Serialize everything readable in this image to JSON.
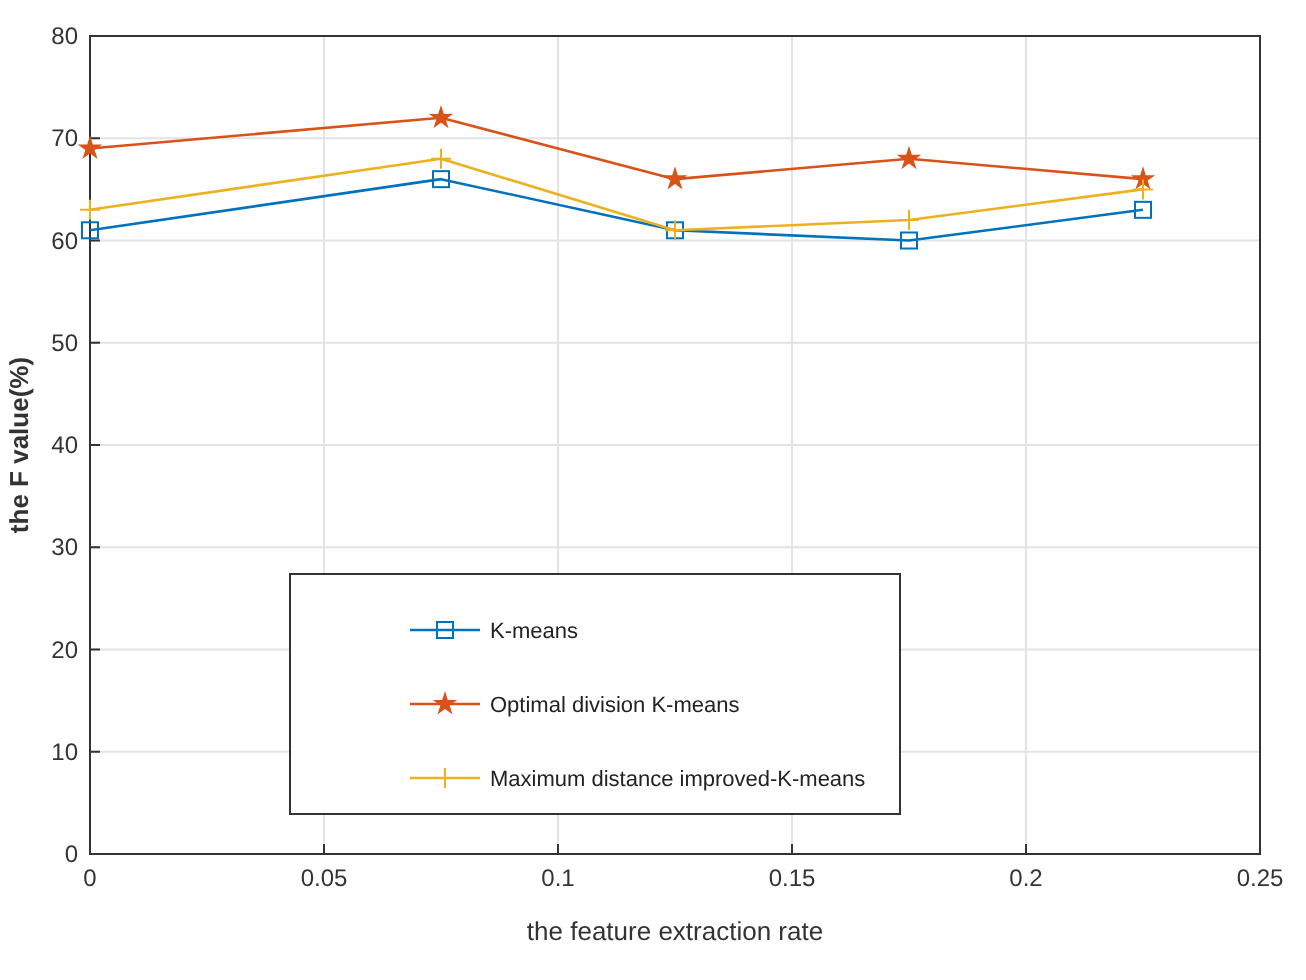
{
  "chart_data": {
    "type": "line",
    "xlabel": "the feature extraction rate",
    "ylabel": "the F value(%)",
    "x": [
      0,
      0.075,
      0.125,
      0.175,
      0.225
    ],
    "series": [
      {
        "name": "K-means",
        "color": "#0072bd",
        "marker": "square",
        "values": [
          61,
          66,
          61,
          60,
          63
        ]
      },
      {
        "name": "Optimal division K-means",
        "color": "#d95319",
        "marker": "star",
        "values": [
          69,
          72,
          66,
          68,
          66
        ]
      },
      {
        "name": "Maximum distance improved-K-means",
        "color": "#edb120",
        "marker": "cross",
        "values": [
          63,
          68,
          61,
          62,
          65
        ]
      }
    ],
    "xlim": [
      0,
      0.25
    ],
    "xticks": [
      0,
      0.05,
      0.1,
      0.15,
      0.2,
      0.25
    ],
    "ylim": [
      0,
      80
    ],
    "yticks": [
      0,
      10,
      20,
      30,
      40,
      50,
      60,
      70,
      80
    ],
    "grid": true,
    "legend": "bottom"
  }
}
